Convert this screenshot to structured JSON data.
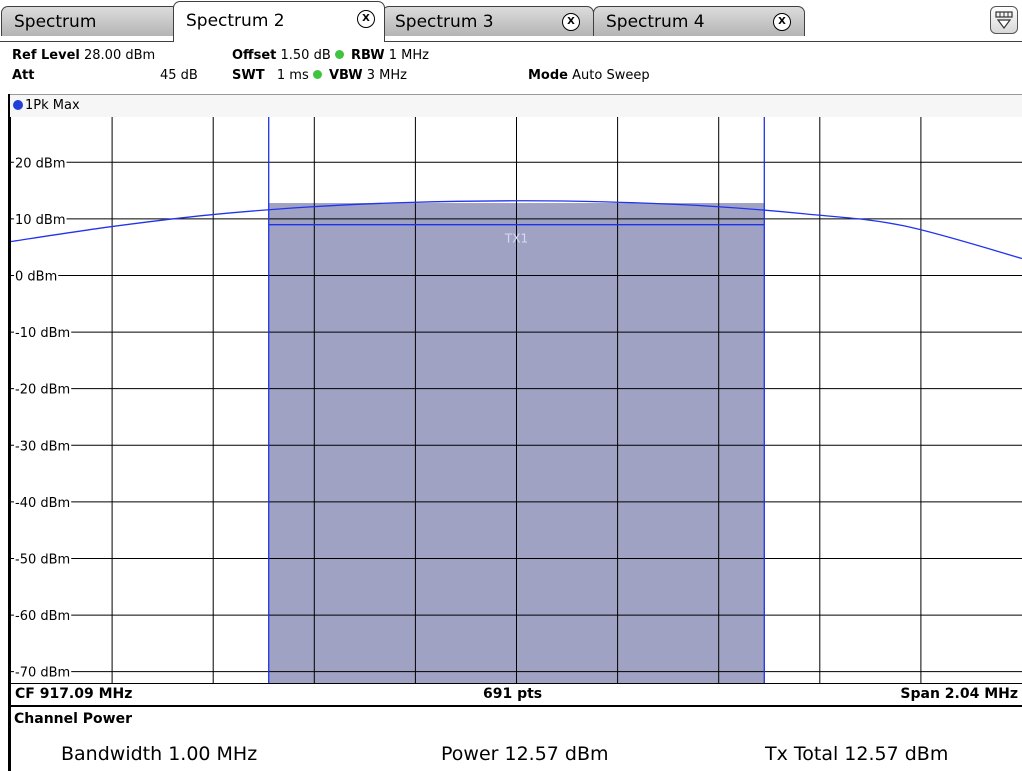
{
  "tabs": [
    {
      "label": "Spectrum"
    },
    {
      "label": "Spectrum 2",
      "close": "X"
    },
    {
      "label": "Spectrum 3",
      "close": "X"
    },
    {
      "label": "Spectrum 4",
      "close": "X"
    }
  ],
  "header": {
    "ref_level_label": "Ref Level",
    "ref_level_value": "28.00 dBm",
    "att_label": "Att",
    "att_value": "45 dB",
    "offset_label": "Offset",
    "offset_value": "1.50 dB",
    "swt_label": "SWT",
    "swt_value": "1 ms",
    "rbw_label": "RBW",
    "rbw_value": "1 MHz",
    "vbw_label": "VBW",
    "vbw_value": "3 MHz",
    "mode_label": "Mode",
    "mode_value": "Auto Sweep"
  },
  "trace": {
    "label": "1Pk Max",
    "color": "#1f3fd8"
  },
  "chart_data": {
    "type": "line",
    "y_unit": "dBm",
    "ylim": [
      -72,
      28
    ],
    "xlim": [
      916.07,
      918.11
    ],
    "y_tick_labels": [
      "20 dBm",
      "10 dBm",
      "0 dBm",
      "-10 dBm",
      "-20 dBm",
      "-30 dBm",
      "-40 dBm",
      "-50 dBm",
      "-60 dBm",
      "-70 dBm"
    ],
    "y_ticks": [
      20,
      10,
      0,
      -10,
      -20,
      -30,
      -40,
      -50,
      -60,
      -70
    ],
    "series": [
      {
        "x_mhz": [
          916.07,
          916.27,
          916.47,
          916.67,
          916.87,
          917.09,
          917.27,
          917.47,
          917.67,
          917.87,
          918.11
        ],
        "y_dbm": [
          6.0,
          8.6,
          10.7,
          12.1,
          12.9,
          13.2,
          13.0,
          12.3,
          10.9,
          8.8,
          3.0
        ]
      }
    ],
    "channel": {
      "label": "TX1",
      "x_start_mhz": 916.59,
      "x_stop_mhz": 917.59,
      "power_dbm": 12.57,
      "fill_level_dbm": 12.8
    },
    "colors": {
      "trace": "#2233ee",
      "channel_fill": "#a0a2c4",
      "channel_edge": "#1e32e6",
      "grid": "#000000"
    }
  },
  "footer": {
    "center_freq": "CF 917.09 MHz",
    "points": "691 pts",
    "span": "Span 2.04 MHz"
  },
  "result": {
    "title": "Channel Power",
    "bandwidth": "Bandwidth  1.00 MHz",
    "power": "Power  12.57 dBm",
    "tx_total": "Tx Total  12.57 dBm"
  }
}
